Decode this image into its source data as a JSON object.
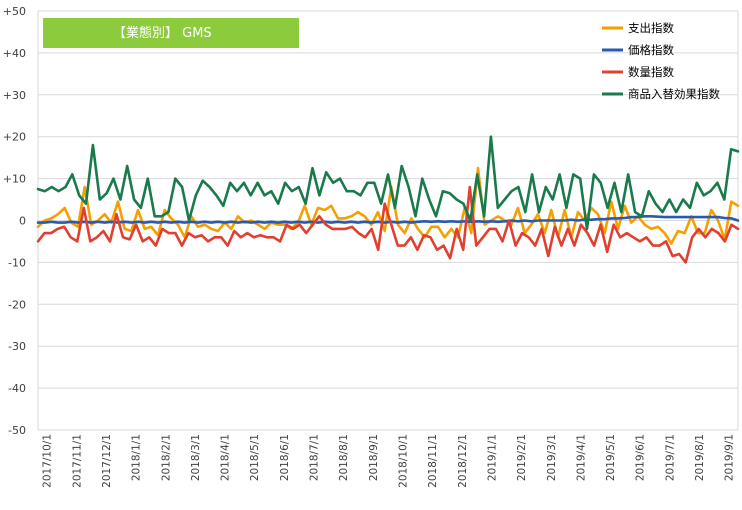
{
  "chart_data": {
    "type": "line",
    "title": "【業態別】 GMS",
    "title_bg_color": "#8ccc3c",
    "y_range": [
      -50,
      50
    ],
    "y_step": 10,
    "y_tick_labels": [
      "+50",
      "+40",
      "+30",
      "+20",
      "+10",
      "0",
      "-10",
      "-20",
      "-30",
      "-40",
      "-50"
    ],
    "x_tick_labels": [
      "2017/10/1",
      "2017/11/1",
      "2017/12/1",
      "2018/1/1",
      "2018/2/1",
      "2018/3/1",
      "2018/4/1",
      "2018/5/1",
      "2018/6/1",
      "2018/7/1",
      "2018/8/1",
      "2018/9/1",
      "2018/10/1",
      "2018/11/1",
      "2018/12/1",
      "2019/1/1",
      "2019/2/1",
      "2019/3/1",
      "2019/4/1",
      "2019/5/1",
      "2019/6/1",
      "2019/7/1",
      "2019/8/1",
      "2019/9/1"
    ],
    "grid": "horizontal",
    "legend_position": "top-right",
    "series": [
      {
        "name": "支出指数",
        "color": "#f5a000",
        "values": [
          -1.5,
          0,
          0.5,
          1.5,
          3,
          -0.5,
          -1.5,
          8,
          -1,
          0,
          1.5,
          -0.5,
          4.5,
          -2,
          -2.5,
          2.5,
          -2,
          -1.5,
          -3.5,
          2.5,
          0.5,
          -1,
          -4,
          1,
          -1.5,
          -1,
          -2,
          -2.5,
          -0.5,
          -2,
          1,
          -0.5,
          0,
          -1,
          -2,
          -0.5,
          -1,
          -1,
          -2,
          -0.5,
          3.5,
          -1,
          3,
          2.5,
          3.5,
          0.5,
          0.5,
          1,
          2,
          1,
          -1,
          2,
          -2.5,
          8,
          -1,
          -3,
          0.5,
          -2,
          -4,
          -1.5,
          -1.5,
          -4,
          -2,
          -4,
          3,
          -3,
          12.5,
          -1,
          0,
          1,
          0,
          -1,
          3,
          -3,
          -1,
          1.5,
          -3,
          2.5,
          -4,
          2.5,
          -4,
          2,
          0,
          3,
          1.5,
          -3,
          4.5,
          -2,
          3.5,
          -0.5,
          1,
          -1,
          -2,
          -1.5,
          -3,
          -5.5,
          -2.5,
          -3,
          1,
          -3,
          -3,
          2.5,
          0,
          -4.5,
          4.5,
          3.5
        ]
      },
      {
        "name": "価格指数",
        "color": "#2a5ab0",
        "values": [
          -0.5,
          -0.5,
          -0.3,
          -0.5,
          -0.5,
          -0.3,
          -0.5,
          -0.3,
          -0.5,
          -0.3,
          -0.5,
          -0.3,
          -0.5,
          -0.3,
          -0.5,
          -0.3,
          -0.5,
          -0.3,
          -0.5,
          -0.3,
          -0.5,
          -0.3,
          -0.5,
          -0.3,
          -0.5,
          -0.3,
          -0.5,
          -0.3,
          -0.5,
          -0.3,
          -0.5,
          -0.3,
          -0.5,
          -0.3,
          -0.5,
          -0.3,
          -0.5,
          -0.3,
          -0.5,
          -0.3,
          -0.5,
          -0.3,
          -0.5,
          -0.3,
          -0.5,
          -0.3,
          -0.5,
          -0.3,
          -0.5,
          -0.3,
          -0.5,
          -0.3,
          -0.5,
          -0.3,
          -0.5,
          -0.3,
          -0.5,
          -0.3,
          -0.2,
          -0.3,
          -0.2,
          -0.3,
          -0.2,
          -0.3,
          -0.2,
          -0.3,
          -0.2,
          -0.3,
          -0.2,
          -0.3,
          -0.2,
          0,
          -0.2,
          0,
          -0.2,
          0,
          0,
          0,
          0,
          0,
          0.2,
          0,
          0.2,
          0.2,
          0.3,
          0.3,
          0.5,
          0.5,
          0.6,
          0.8,
          0.8,
          1,
          1,
          0.9,
          0.8,
          0.8,
          0.8,
          0.8,
          0.8,
          0.8,
          0.8,
          0.8,
          0.8,
          0.6,
          0.5,
          0
        ]
      },
      {
        "name": "数量指数",
        "color": "#e04030",
        "values": [
          -5,
          -3,
          -3,
          -2,
          -1.5,
          -4,
          -5,
          3,
          -5,
          -4,
          -2.5,
          -5,
          1.5,
          -4,
          -4.5,
          -1,
          -5,
          -4,
          -6,
          -2,
          -3,
          -3,
          -6,
          -3,
          -4,
          -3.5,
          -5,
          -4,
          -4,
          -6,
          -2.5,
          -4,
          -3,
          -4,
          -3.5,
          -4,
          -4,
          -5,
          -1,
          -2,
          -1,
          -3,
          -1,
          1,
          -1,
          -2,
          -2,
          -2,
          -1.5,
          -3,
          -4,
          -2,
          -7,
          4,
          -1,
          -6,
          -6,
          -4,
          -7,
          -3.5,
          -4,
          -7,
          -6,
          -9,
          -2,
          -7,
          8,
          -6,
          -4,
          -2,
          -2,
          -5,
          0,
          -6,
          -3,
          -4,
          -6,
          -2,
          -8.5,
          -1.5,
          -6,
          -2,
          -6,
          -1,
          -3,
          -6,
          -1,
          -7.5,
          -1,
          -4,
          -3,
          -4,
          -5,
          -4,
          -6,
          -6,
          -5,
          -8.5,
          -8,
          -10,
          -4,
          -2,
          -4,
          -2,
          -3,
          -5,
          -1,
          -2
        ]
      },
      {
        "name": "商品入替効果指数",
        "color": "#1a7a4c",
        "values": [
          7.5,
          7,
          8,
          7,
          8,
          11,
          6,
          4,
          18,
          5,
          6.5,
          10,
          5,
          13,
          5,
          3,
          10,
          1,
          1,
          2,
          10,
          8,
          0,
          6,
          9.5,
          8,
          6,
          3.5,
          9,
          7,
          9,
          6,
          9,
          6,
          7,
          4,
          9,
          7,
          8,
          4,
          12.5,
          6,
          11.5,
          9,
          10,
          7,
          7,
          6,
          9,
          9,
          4,
          11,
          3,
          13,
          8,
          1,
          10,
          5,
          1,
          7,
          6.5,
          5,
          4,
          0,
          11,
          1,
          20,
          3,
          5,
          7,
          8,
          2,
          11,
          2,
          8,
          5,
          11,
          3,
          11,
          10,
          -2,
          11,
          9,
          3,
          9,
          2,
          11,
          2,
          1,
          7,
          4,
          2,
          5,
          2,
          5,
          3,
          9,
          6,
          7,
          9,
          5,
          17,
          16.5
        ]
      }
    ]
  }
}
